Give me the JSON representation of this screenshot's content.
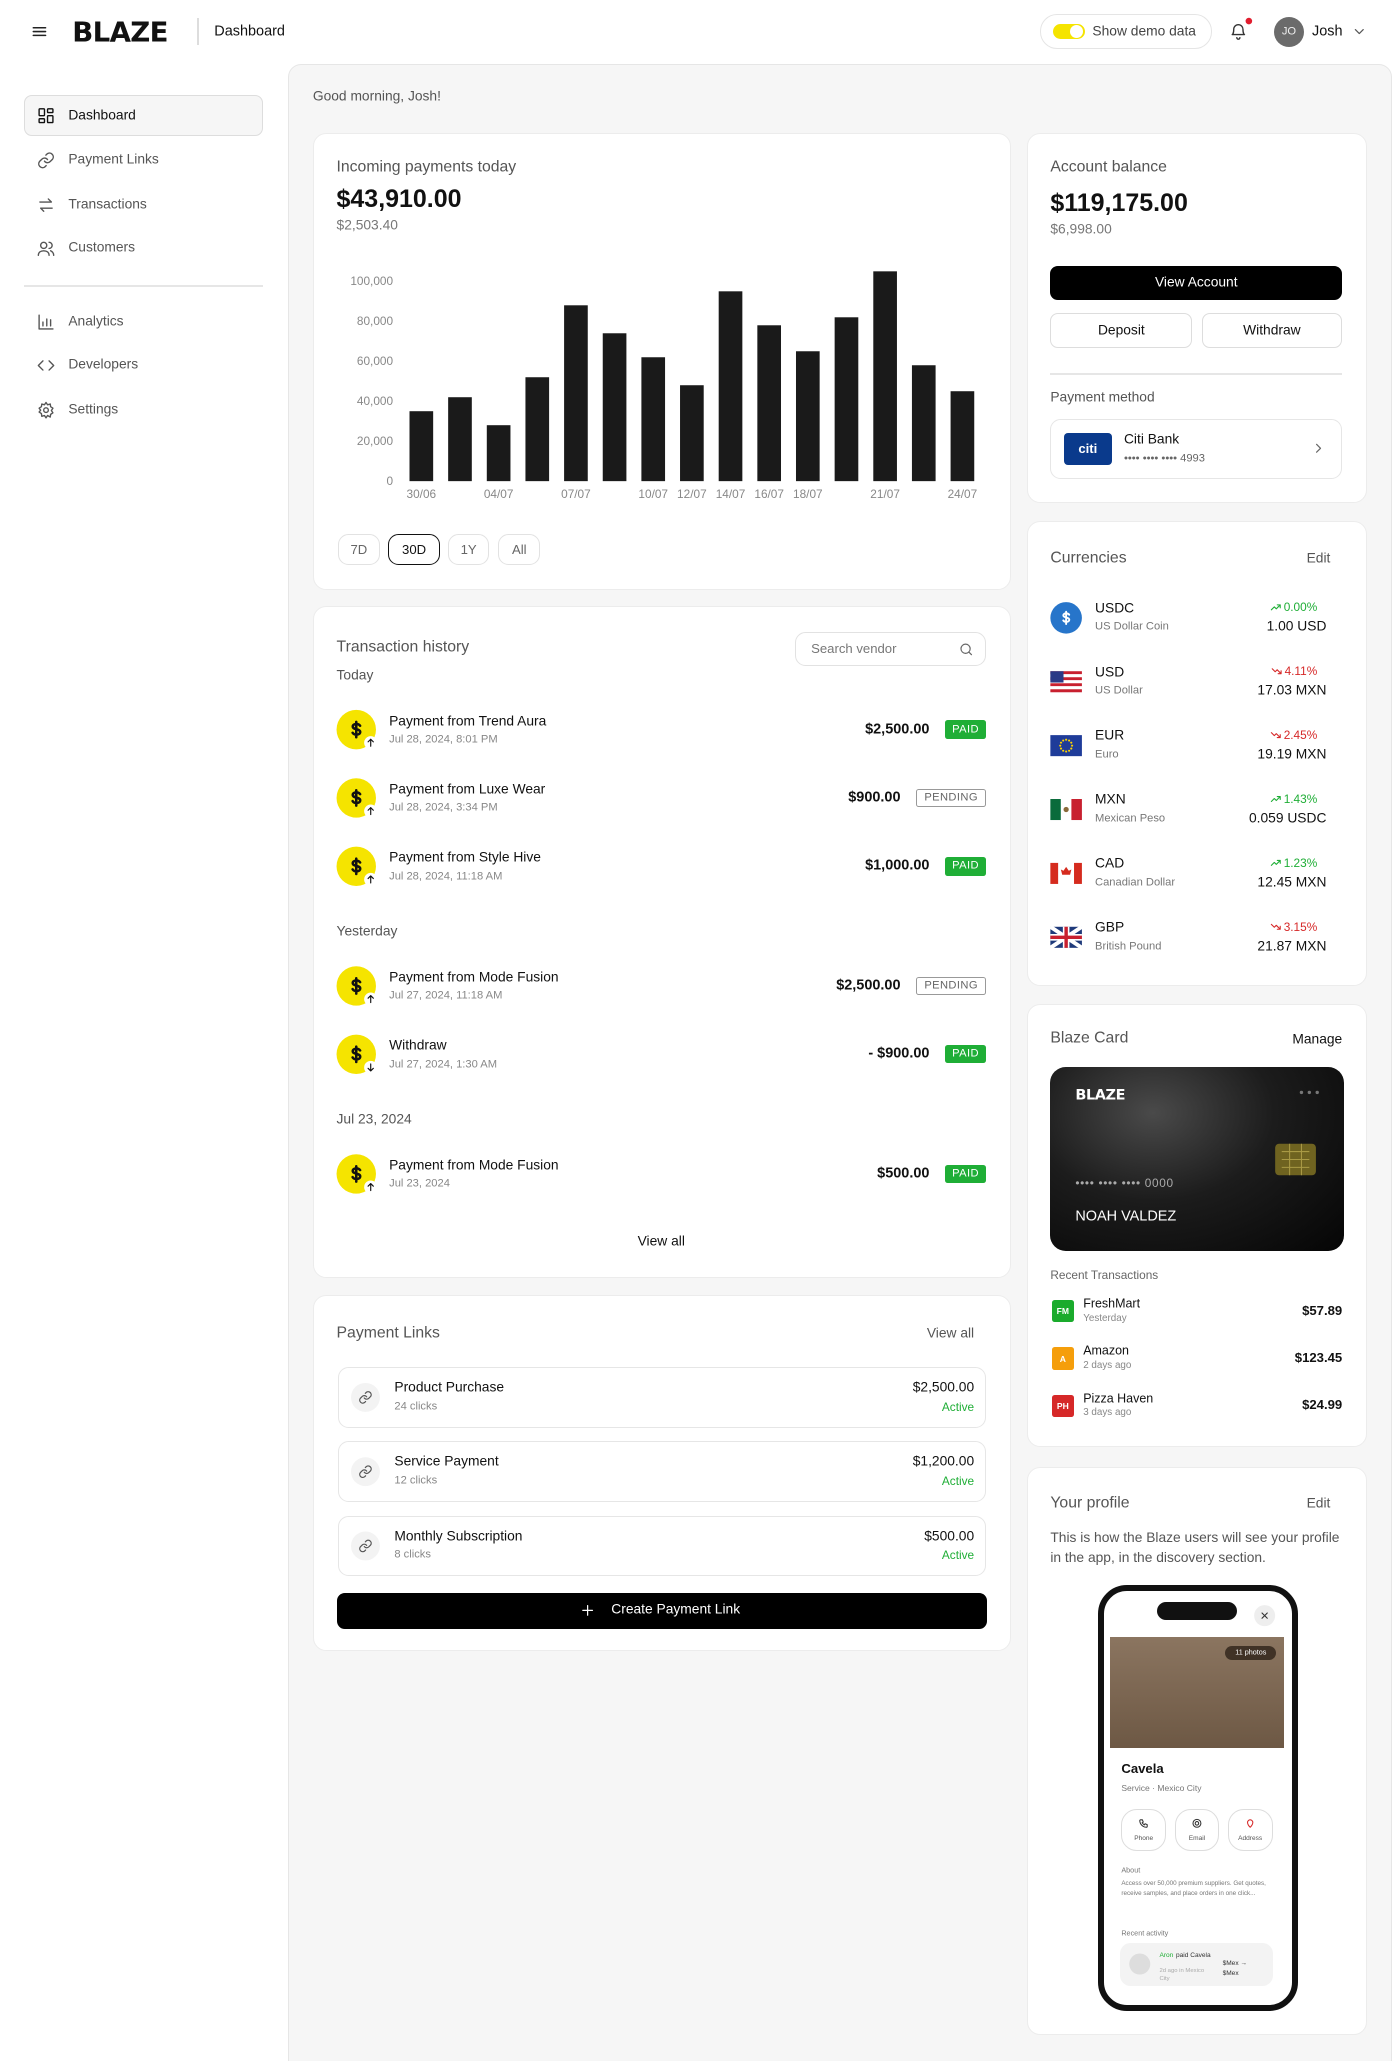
{
  "header": {
    "logo": "BLAZE",
    "page": "Dashboard",
    "demo_toggle": "Show demo data",
    "avatar_initials": "JO",
    "user": "Josh"
  },
  "sidebar": {
    "nav": [
      {
        "label": "Dashboard",
        "active": true
      },
      {
        "label": "Payment Links",
        "active": false
      },
      {
        "label": "Transactions",
        "active": false
      },
      {
        "label": "Customers",
        "active": false
      },
      {
        "label": "Analytics",
        "active": false
      },
      {
        "label": "Developers",
        "active": false
      },
      {
        "label": "Settings",
        "active": false
      }
    ]
  },
  "greeting": "Good morning, Josh!",
  "incoming": {
    "title": "Incoming payments today",
    "amount": "$43,910.00",
    "subtitle": "$2,503.40",
    "ranges": [
      {
        "label": "7D",
        "active": false
      },
      {
        "label": "30D",
        "active": true
      },
      {
        "label": "1Y",
        "active": false
      },
      {
        "label": "All",
        "active": false
      }
    ]
  },
  "chart_data": {
    "type": "bar",
    "color": "#1a1a1a",
    "grid": false,
    "categories": [
      "30/06",
      null,
      "04/07",
      null,
      "07/07",
      null,
      "10/07",
      "12/07",
      "14/07",
      "16/07",
      "18/07",
      null,
      "21/07",
      null,
      "24/07"
    ],
    "values": [
      35000,
      42000,
      28000,
      52000,
      88000,
      74000,
      62000,
      48000,
      95000,
      78000,
      65000,
      82000,
      105000,
      58000,
      45000
    ],
    "ylim": [
      0,
      110000
    ],
    "yticks": [
      0,
      {
        "value": 20000,
        "label": "20,000"
      },
      {
        "value": 40000,
        "label": "40,000"
      },
      {
        "value": 60000,
        "label": "60,000"
      },
      {
        "value": 80000,
        "label": "80,000"
      },
      {
        "value": 100000,
        "label": "100,000"
      }
    ]
  },
  "transactions": {
    "title": "Transaction history",
    "search_placeholder": "Search vendor",
    "view_all": "View all",
    "groups": [
      {
        "label": "Today",
        "items": [
          {
            "title": "Payment from Trend Aura",
            "date": "Jul 28, 2024, 8:01 PM",
            "amount": "$2,500.00",
            "status": "PAID",
            "direction": "in"
          },
          {
            "title": "Payment from Luxe Wear",
            "date": "Jul 28, 2024, 3:34 PM",
            "amount": "$900.00",
            "status": "PENDING",
            "direction": "in"
          },
          {
            "title": "Payment from Style Hive",
            "date": "Jul 28, 2024, 11:18 AM",
            "amount": "$1,000.00",
            "status": "PAID",
            "direction": "in"
          }
        ]
      },
      {
        "label": "Yesterday",
        "items": [
          {
            "title": "Payment from Mode Fusion",
            "date": "Jul 27, 2024, 11:18 AM",
            "amount": "$2,500.00",
            "status": "PENDING",
            "direction": "in"
          },
          {
            "title": "Withdraw",
            "date": "Jul 27, 2024, 1:30 AM",
            "amount": "- $900.00",
            "status": "PAID",
            "direction": "out"
          }
        ]
      },
      {
        "label": "Jul 23, 2024",
        "items": [
          {
            "title": "Payment from Mode Fusion",
            "date": "Jul 23, 2024",
            "amount": "$500.00",
            "status": "PAID",
            "direction": "in"
          }
        ]
      }
    ]
  },
  "payment_links": {
    "title": "Payment Links",
    "view_all": "View all",
    "create_button": "Create Payment Link",
    "links": [
      {
        "name": "Product Purchase",
        "clicks": "24 clicks",
        "amount": "$2,500.00",
        "status": "Active"
      },
      {
        "name": "Service Payment",
        "clicks": "12 clicks",
        "amount": "$1,200.00",
        "status": "Active"
      },
      {
        "name": "Monthly Subscription",
        "clicks": "8 clicks",
        "amount": "$500.00",
        "status": "Active"
      }
    ]
  },
  "account": {
    "title": "Account balance",
    "amount": "$119,175.00",
    "subtitle": "$6,998.00",
    "view_button": "View Account",
    "deposit_button": "Deposit",
    "withdraw_button": "Withdraw",
    "payment_method": {
      "title": "Payment method",
      "logo": "citi",
      "bank": "Citi Bank",
      "number": "•••• •••• •••• 4993"
    }
  },
  "currencies": {
    "title": "Currencies",
    "edit": "Edit",
    "items": [
      {
        "code": "USDC",
        "name": "US Dollar Coin",
        "change": "0.00%",
        "trend": "up",
        "value": "1.00 USD"
      },
      {
        "code": "USD",
        "name": "US Dollar",
        "change": "4.11%",
        "trend": "down",
        "value": "17.03 MXN"
      },
      {
        "code": "EUR",
        "name": "Euro",
        "change": "2.45%",
        "trend": "down",
        "value": "19.19 MXN"
      },
      {
        "code": "MXN",
        "name": "Mexican Peso",
        "change": "1.43%",
        "trend": "up",
        "value": "0.059 USDC"
      },
      {
        "code": "CAD",
        "name": "Canadian Dollar",
        "change": "1.23%",
        "trend": "up",
        "value": "12.45 MXN"
      },
      {
        "code": "GBP",
        "name": "British Pound",
        "change": "3.15%",
        "trend": "down",
        "value": "21.87 MXN"
      }
    ]
  },
  "card": {
    "title": "Blaze Card",
    "manage": "Manage",
    "logo": "BLAZE",
    "number": "•••• •••• •••• 0000",
    "holder": "NOAH VALDEZ",
    "recent_title": "Recent Transactions",
    "transactions": [
      {
        "initials": "FM",
        "name": "FreshMart",
        "time": "Yesterday",
        "amount": "$57.89",
        "color": "#1aab2c"
      },
      {
        "initials": "A",
        "name": "Amazon",
        "time": "2 days ago",
        "amount": "$123.45",
        "color": "#f59e0b"
      },
      {
        "initials": "PH",
        "name": "Pizza Haven",
        "time": "3 days ago",
        "amount": "$24.99",
        "color": "#d62828"
      }
    ]
  },
  "profile": {
    "title": "Your profile",
    "edit": "Edit",
    "description": "This is how the Blaze users will see your profile in the app, in the discovery section.",
    "app": {
      "photos": "11 photos",
      "name": "Cavela",
      "subtitle": "Service · Mexico City",
      "actions": [
        "Phone",
        "Email",
        "Address"
      ],
      "about_title": "About",
      "about_text": "Access over 50,000 premium suppliers. Get quotes, receive samples, and place orders in one click...",
      "activity_title": "Recent activity",
      "activity": {
        "actor": "Aron",
        "action": "paid Cavela",
        "meta": "2d ago in Mexico City",
        "amount": "$Mex → $Mex"
      }
    }
  }
}
